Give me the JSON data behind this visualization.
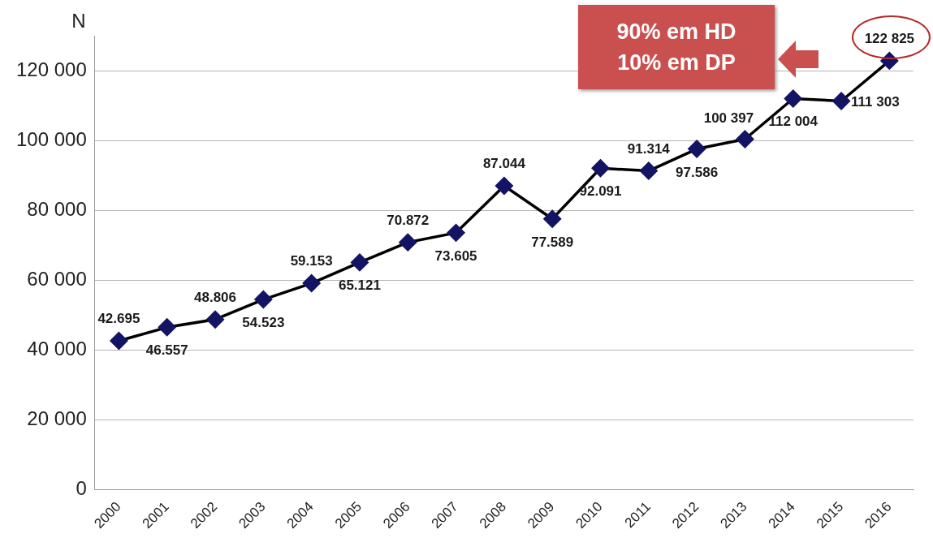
{
  "chart_data": {
    "type": "line",
    "ylabel": "N",
    "categories": [
      "2000",
      "2001",
      "2002",
      "2003",
      "2004",
      "2005",
      "2006",
      "2007",
      "2008",
      "2009",
      "2010",
      "2011",
      "2012",
      "2013",
      "2014",
      "2015",
      "2016"
    ],
    "series": [
      {
        "color": "#141464",
        "values": [
          42695,
          46557,
          48806,
          54523,
          59153,
          65121,
          70872,
          73605,
          87044,
          77589,
          92091,
          91314,
          97586,
          100397,
          112004,
          111303,
          122825
        ],
        "value_labels": [
          "42.695",
          "46.557",
          "48.806",
          "54.523",
          "59.153",
          "65.121",
          "70.872",
          "73.605",
          "87.044",
          "77.589",
          "92.091",
          "91.314",
          "97.586",
          "100 397",
          "112 004",
          "111 303",
          "122 825"
        ]
      }
    ],
    "ylim": [
      0,
      130000
    ],
    "yticks": [
      {
        "value": 0,
        "label": "0"
      },
      {
        "value": 20000,
        "label": "20 000"
      },
      {
        "value": 40000,
        "label": "40 000"
      },
      {
        "value": 60000,
        "label": "60 000"
      },
      {
        "value": 80000,
        "label": "80 000"
      },
      {
        "value": 100000,
        "label": "100 000"
      },
      {
        "value": 120000,
        "label": "120 000"
      }
    ],
    "grid": "y",
    "legend": false,
    "marker": "diamond",
    "line_style": "solid",
    "annotations": [
      "90% em HD",
      "10% em DP"
    ]
  }
}
